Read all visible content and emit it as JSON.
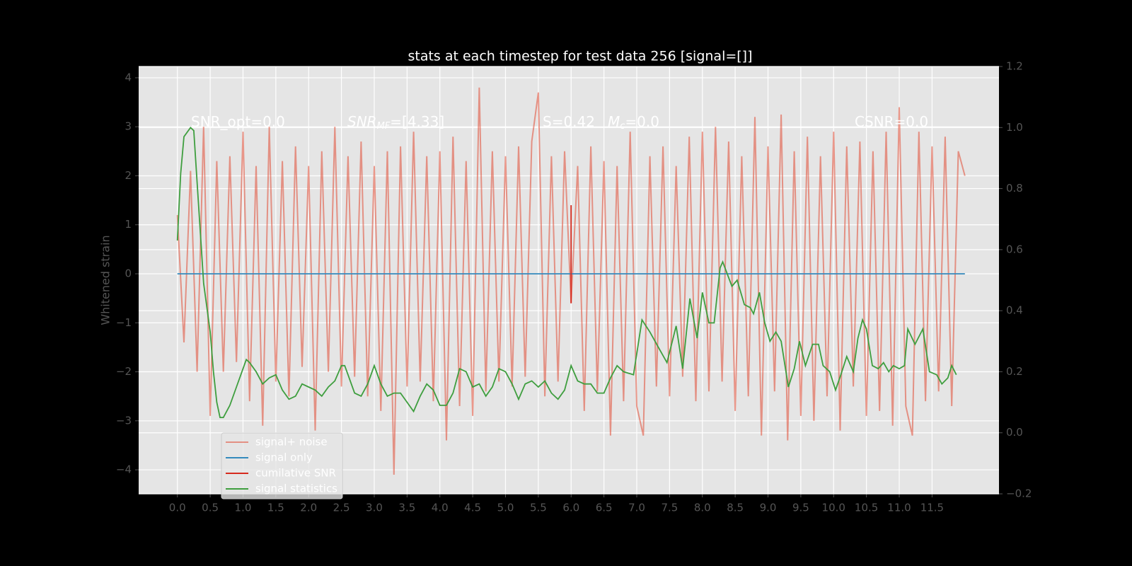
{
  "chart_data": {
    "type": "line",
    "title": "stats at each timestep for test data 256 [signal=[]]",
    "y_label": "Whitened strain",
    "xlim": [
      -0.59,
      12.52
    ],
    "ylim": [
      -4.49,
      4.23
    ],
    "y2lim": [
      -0.2,
      1.2
    ],
    "grid": true,
    "legend": "lower left",
    "xticks": [
      {
        "value": 0,
        "label": "0.0"
      },
      {
        "value": 0.5,
        "label": "0.5"
      },
      {
        "value": 1,
        "label": "1.0"
      },
      {
        "value": 1.5,
        "label": "1.5"
      },
      {
        "value": 2,
        "label": "2.0"
      },
      {
        "value": 2.5,
        "label": "2.5"
      },
      {
        "value": 3,
        "label": "3.0"
      },
      {
        "value": 3.5,
        "label": "3.5"
      },
      {
        "value": 4,
        "label": "4.0"
      },
      {
        "value": 4.5,
        "label": "4.5"
      },
      {
        "value": 5,
        "label": "5.0"
      },
      {
        "value": 5.5,
        "label": "5.5"
      },
      {
        "value": 6,
        "label": "6.0"
      },
      {
        "value": 6.5,
        "label": "6.5"
      },
      {
        "value": 7,
        "label": "7.0"
      },
      {
        "value": 7.5,
        "label": "7.5"
      },
      {
        "value": 8,
        "label": "8.0"
      },
      {
        "value": 8.5,
        "label": "8.5"
      },
      {
        "value": 9,
        "label": "9.0"
      },
      {
        "value": 9.5,
        "label": "9.5"
      },
      {
        "value": 10,
        "label": "10.0"
      },
      {
        "value": 10.5,
        "label": "10.5"
      },
      {
        "value": 11,
        "label": "11.0"
      },
      {
        "value": 11.5,
        "label": "11.5"
      }
    ],
    "yticks": [
      {
        "value": -4,
        "label": "−4"
      },
      {
        "value": -3,
        "label": "−3"
      },
      {
        "value": -2,
        "label": "−2"
      },
      {
        "value": -1,
        "label": "−1"
      },
      0,
      1,
      2,
      3,
      4
    ],
    "y2ticks": [
      {
        "value": -0.2,
        "label": "−0.2"
      },
      {
        "value": 0,
        "label": "0.0"
      },
      {
        "value": 0.2,
        "label": "0.2"
      },
      {
        "value": 0.4,
        "label": "0.4"
      },
      {
        "value": 0.6,
        "label": "0.6"
      },
      {
        "value": 0.8,
        "label": "0.8"
      },
      {
        "value": 1,
        "label": "1.0"
      },
      {
        "value": 1.2,
        "label": "1.2"
      }
    ],
    "annotations": [
      {
        "text": "SNR_opt=0.0"
      },
      {
        "base": "SNR",
        "sub": "MF",
        "text": "=[4.33]"
      },
      {
        "text": "S=0.42"
      },
      {
        "base": "M",
        "sub": "c",
        "text": "=0.0"
      },
      {
        "text": "CSNR=0.0"
      }
    ],
    "series": [
      {
        "name": "signal+ noise",
        "color": "#E24A33",
        "x": [
          0,
          0.1,
          0.2,
          0.3,
          0.4,
          0.5,
          0.6,
          0.7,
          0.8,
          0.9,
          1,
          1.1,
          1.2,
          1.3,
          1.4,
          1.5,
          1.6,
          1.7,
          1.8,
          1.9,
          2,
          2.1,
          2.2,
          2.3,
          2.4,
          2.5,
          2.6,
          2.7,
          2.8,
          2.9,
          3,
          3.1,
          3.2,
          3.3,
          3.4,
          3.5,
          3.6,
          3.7,
          3.8,
          3.9,
          4,
          4.1,
          4.2,
          4.3,
          4.4,
          4.5,
          4.6,
          4.7,
          4.8,
          4.9,
          5,
          5.1,
          5.2,
          5.3,
          5.4,
          5.5,
          5.6,
          5.7,
          5.8,
          5.9,
          6,
          6.1,
          6.2,
          6.3,
          6.4,
          6.5,
          6.6,
          6.7,
          6.8,
          6.9,
          7,
          7.1,
          7.2,
          7.3,
          7.4,
          7.5,
          7.6,
          7.7,
          7.8,
          7.9,
          8,
          8.1,
          8.2,
          8.3,
          8.4,
          8.5,
          8.6,
          8.7,
          8.8,
          8.9,
          9,
          9.1,
          9.2,
          9.3,
          9.4,
          9.5,
          9.6,
          9.7,
          9.8,
          9.9,
          10,
          10.1,
          10.2,
          10.3,
          10.4,
          10.5,
          10.6,
          10.7,
          10.8,
          10.9,
          11,
          11.1,
          11.2,
          11.3,
          11.4,
          11.5,
          11.6,
          11.7,
          11.8,
          11.9,
          12
        ],
        "values": [
          1.2,
          -1.4,
          2.1,
          -2.0,
          3.0,
          -2.9,
          2.3,
          -2.0,
          2.4,
          -1.8,
          2.9,
          -2.6,
          2.2,
          -3.1,
          3.0,
          -2.2,
          2.3,
          -2.5,
          2.6,
          -1.9,
          2.2,
          -3.2,
          2.5,
          -2.0,
          3.0,
          -2.3,
          2.4,
          -2.1,
          2.7,
          -2.5,
          2.2,
          -2.8,
          2.5,
          -4.1,
          2.6,
          -2.3,
          2.9,
          -2.2,
          2.4,
          -2.6,
          2.5,
          -3.4,
          2.8,
          -2.7,
          2.3,
          -2.9,
          3.8,
          -2.4,
          2.5,
          -2.2,
          2.4,
          -2.3,
          2.6,
          -2.1,
          2.7,
          3.7,
          -2.5,
          2.4,
          -2.2,
          2.5,
          -0.6,
          2.2,
          -2.8,
          2.6,
          -2.4,
          2.3,
          -3.3,
          2.2,
          -2.6,
          2.9,
          -2.7,
          -3.3,
          2.4,
          -2.3,
          2.6,
          -2.5,
          2.2,
          -2.1,
          2.8,
          -2.6,
          2.9,
          -2.4,
          3.0,
          -2.2,
          2.7,
          -2.8,
          2.4,
          -2.5,
          3.2,
          -3.3,
          2.6,
          -2.4,
          3.25,
          -3.4,
          2.5,
          -2.9,
          2.8,
          -3.0,
          2.4,
          -2.5,
          2.9,
          -3.2,
          2.6,
          -2.3,
          2.7,
          -2.9,
          2.5,
          -2.8,
          2.9,
          -3.1,
          3.4,
          -2.7,
          -3.3,
          2.9,
          -2.6,
          2.6,
          -2.4,
          2.8,
          -2.7,
          2.5,
          2.0
        ]
      },
      {
        "name": "signal only",
        "color": "#348ABD",
        "x": [
          0,
          12
        ],
        "values": [
          0,
          0
        ]
      },
      {
        "name": "cumilative SNR",
        "color": "#D62A1E",
        "x": [
          6,
          6
        ],
        "values": [
          1.4,
          -0.6
        ]
      },
      {
        "name": "signal statistics",
        "color": "#3E9E3E",
        "axis": "y2",
        "x": [
          0,
          0.05,
          0.1,
          0.2,
          0.25,
          0.3,
          0.4,
          0.5,
          0.55,
          0.6,
          0.65,
          0.7,
          0.8,
          0.9,
          1,
          1.05,
          1.1,
          1.2,
          1.3,
          1.4,
          1.5,
          1.6,
          1.7,
          1.8,
          1.9,
          2,
          2.1,
          2.2,
          2.3,
          2.4,
          2.5,
          2.55,
          2.6,
          2.7,
          2.8,
          2.9,
          3,
          3.1,
          3.2,
          3.3,
          3.4,
          3.5,
          3.6,
          3.7,
          3.8,
          3.9,
          4,
          4.1,
          4.2,
          4.3,
          4.4,
          4.5,
          4.6,
          4.7,
          4.8,
          4.9,
          5,
          5.1,
          5.2,
          5.3,
          5.4,
          5.5,
          5.6,
          5.7,
          5.8,
          5.9,
          6,
          6.1,
          6.2,
          6.3,
          6.4,
          6.5,
          6.6,
          6.7,
          6.8,
          6.95,
          7.08,
          7.2,
          7.33,
          7.46,
          7.6,
          7.7,
          7.81,
          7.92,
          8,
          8.1,
          8.18,
          8.27,
          8.31,
          8.45,
          8.53,
          8.64,
          8.73,
          8.78,
          8.87,
          8.95,
          9.03,
          9.12,
          9.2,
          9.31,
          9.4,
          9.48,
          9.57,
          9.68,
          9.77,
          9.84,
          9.94,
          10.03,
          10.11,
          10.2,
          10.3,
          10.37,
          10.44,
          10.5,
          10.59,
          10.68,
          10.76,
          10.84,
          10.91,
          11,
          11.08,
          11.13,
          11.24,
          11.36,
          11.46,
          11.57,
          11.65,
          11.74,
          11.8,
          11.87
        ],
        "values": [
          0.63,
          0.85,
          0.97,
          1.0,
          0.99,
          0.82,
          0.49,
          0.33,
          0.2,
          0.1,
          0.05,
          0.05,
          0.09,
          0.15,
          0.21,
          0.24,
          0.23,
          0.2,
          0.16,
          0.18,
          0.19,
          0.14,
          0.11,
          0.12,
          0.16,
          0.15,
          0.14,
          0.12,
          0.15,
          0.17,
          0.22,
          0.22,
          0.19,
          0.13,
          0.12,
          0.16,
          0.22,
          0.16,
          0.12,
          0.13,
          0.13,
          0.1,
          0.07,
          0.12,
          0.16,
          0.14,
          0.09,
          0.09,
          0.13,
          0.21,
          0.2,
          0.15,
          0.16,
          0.12,
          0.15,
          0.21,
          0.2,
          0.16,
          0.11,
          0.16,
          0.17,
          0.15,
          0.17,
          0.13,
          0.11,
          0.14,
          0.22,
          0.17,
          0.16,
          0.16,
          0.13,
          0.13,
          0.18,
          0.22,
          0.2,
          0.19,
          0.37,
          0.33,
          0.28,
          0.23,
          0.35,
          0.21,
          0.44,
          0.31,
          0.46,
          0.36,
          0.36,
          0.54,
          0.56,
          0.48,
          0.5,
          0.42,
          0.41,
          0.39,
          0.46,
          0.36,
          0.3,
          0.33,
          0.3,
          0.15,
          0.21,
          0.3,
          0.22,
          0.29,
          0.29,
          0.22,
          0.2,
          0.14,
          0.19,
          0.25,
          0.2,
          0.31,
          0.37,
          0.34,
          0.22,
          0.21,
          0.23,
          0.2,
          0.22,
          0.21,
          0.22,
          0.34,
          0.29,
          0.34,
          0.2,
          0.19,
          0.16,
          0.18,
          0.22,
          0.19
        ]
      }
    ]
  }
}
